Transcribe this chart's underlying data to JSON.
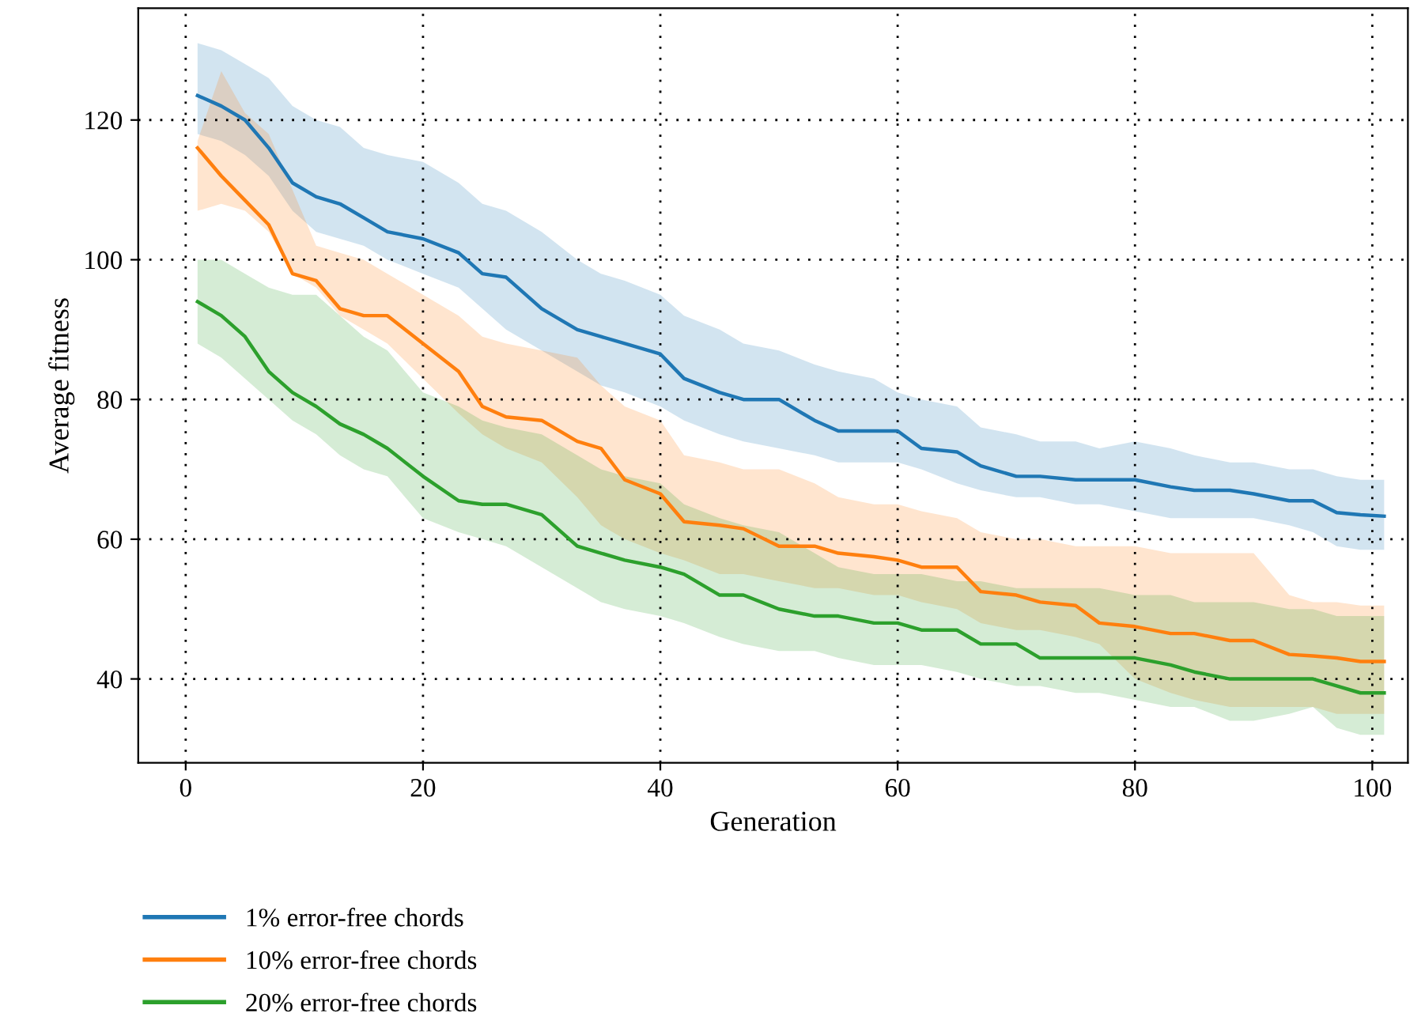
{
  "chart_data": {
    "type": "line",
    "xlabel": "Generation",
    "ylabel": "Average fitness",
    "x": [
      1,
      3,
      5,
      7,
      9,
      11,
      13,
      15,
      17,
      20,
      23,
      25,
      27,
      30,
      33,
      35,
      37,
      40,
      42,
      45,
      47,
      50,
      53,
      55,
      58,
      60,
      62,
      65,
      67,
      70,
      72,
      75,
      77,
      80,
      83,
      85,
      88,
      90,
      93,
      95,
      97,
      99,
      101
    ],
    "series": [
      {
        "name": "1% error-free chords",
        "color": "#1f77b4",
        "values": [
          123.5,
          122,
          120,
          116,
          111,
          109,
          108,
          106,
          104,
          103,
          101,
          98,
          97.5,
          93,
          90,
          89,
          88,
          86.5,
          83,
          81,
          80,
          80,
          77,
          75.5,
          75.5,
          75.5,
          73,
          72.5,
          70.5,
          69,
          69,
          68.5,
          68.5,
          68.5,
          67.5,
          67,
          67,
          66.5,
          65.5,
          65.5,
          63.8,
          63.5,
          63.3
        ],
        "upper": [
          131,
          130,
          128,
          126,
          122,
          120,
          119,
          116,
          115,
          114,
          111,
          108,
          107,
          104,
          100,
          98,
          97,
          95,
          92,
          90,
          88,
          87,
          85,
          84,
          83,
          81,
          80,
          79,
          76,
          75,
          74,
          74,
          73,
          74,
          73,
          72,
          71,
          71,
          70,
          70,
          69,
          68.5,
          68.5
        ],
        "lower": [
          118,
          117,
          115,
          112,
          107,
          104,
          103,
          102,
          100,
          98,
          96,
          93,
          90,
          87,
          84,
          82,
          81,
          79,
          77,
          75,
          74,
          73,
          72,
          71,
          71,
          71,
          70,
          68,
          67,
          66,
          66,
          65,
          65,
          64,
          63,
          63,
          63,
          63,
          62,
          61,
          59,
          58.5,
          58.5
        ]
      },
      {
        "name": "10% error-free chords",
        "color": "#ff7f0e",
        "values": [
          116,
          112,
          108.5,
          105,
          98,
          97,
          93,
          92,
          92,
          88,
          84,
          79,
          77.5,
          77,
          74,
          73,
          68.5,
          66.5,
          62.5,
          62,
          61.5,
          59,
          59,
          58,
          57.5,
          57,
          56,
          56,
          52.5,
          52,
          51,
          50.5,
          48,
          47.5,
          46.5,
          46.5,
          45.5,
          45.5,
          43.5,
          43.3,
          43,
          42.5,
          42.5
        ],
        "upper": [
          117,
          127,
          121,
          118,
          110,
          102,
          101,
          100,
          98,
          95,
          92,
          89,
          88,
          87,
          86,
          82,
          79,
          77,
          72,
          71,
          70,
          70,
          68,
          66,
          65,
          65,
          64,
          63,
          61,
          60,
          60,
          59,
          59,
          59,
          58,
          58,
          58,
          58,
          52,
          51,
          51,
          50.5,
          50.5
        ],
        "lower": [
          107,
          108,
          107,
          104,
          98,
          96,
          92,
          90,
          88,
          83,
          78,
          75,
          73,
          71,
          66,
          62,
          60,
          58,
          57,
          55,
          55,
          54,
          53,
          53,
          52,
          52,
          51,
          50,
          48,
          47,
          47,
          46,
          45,
          40,
          38,
          37,
          36,
          36,
          36,
          36,
          35,
          35,
          35
        ]
      },
      {
        "name": "20% error-free chords",
        "color": "#2ca02c",
        "values": [
          94,
          92,
          89,
          84,
          81,
          79,
          76.5,
          75,
          73,
          69,
          65.5,
          65,
          65,
          63.5,
          59,
          58,
          57,
          56,
          55,
          52,
          52,
          50,
          49,
          49,
          48,
          48,
          47,
          47,
          45,
          45,
          43,
          43,
          43,
          43,
          42,
          41,
          40,
          40,
          40,
          40,
          39,
          38,
          38
        ],
        "upper": [
          100,
          100,
          98,
          96,
          95,
          95,
          92,
          89,
          87,
          81,
          79,
          77,
          76,
          75,
          72,
          70,
          69,
          68,
          65,
          63,
          62,
          61,
          58,
          56,
          55,
          55,
          55,
          54,
          54,
          53,
          53,
          53,
          53,
          52,
          52,
          51,
          51,
          51,
          50,
          50,
          49,
          49,
          49
        ],
        "lower": [
          88,
          86,
          83,
          80,
          77,
          75,
          72,
          70,
          69,
          63,
          61,
          60,
          59,
          56,
          53,
          51,
          50,
          49,
          48,
          46,
          45,
          44,
          44,
          43,
          42,
          42,
          42,
          41,
          40,
          39,
          39,
          38,
          38,
          37,
          36,
          36,
          34,
          34,
          35,
          36,
          33,
          32,
          32
        ]
      }
    ],
    "xlim": [
      -4,
      103
    ],
    "ylim": [
      28,
      136
    ],
    "xticks": [
      0,
      20,
      40,
      60,
      80,
      100
    ],
    "yticks": [
      40,
      60,
      80,
      100,
      120
    ],
    "grid": true,
    "line_style": "solid",
    "legend": "bottom left"
  }
}
